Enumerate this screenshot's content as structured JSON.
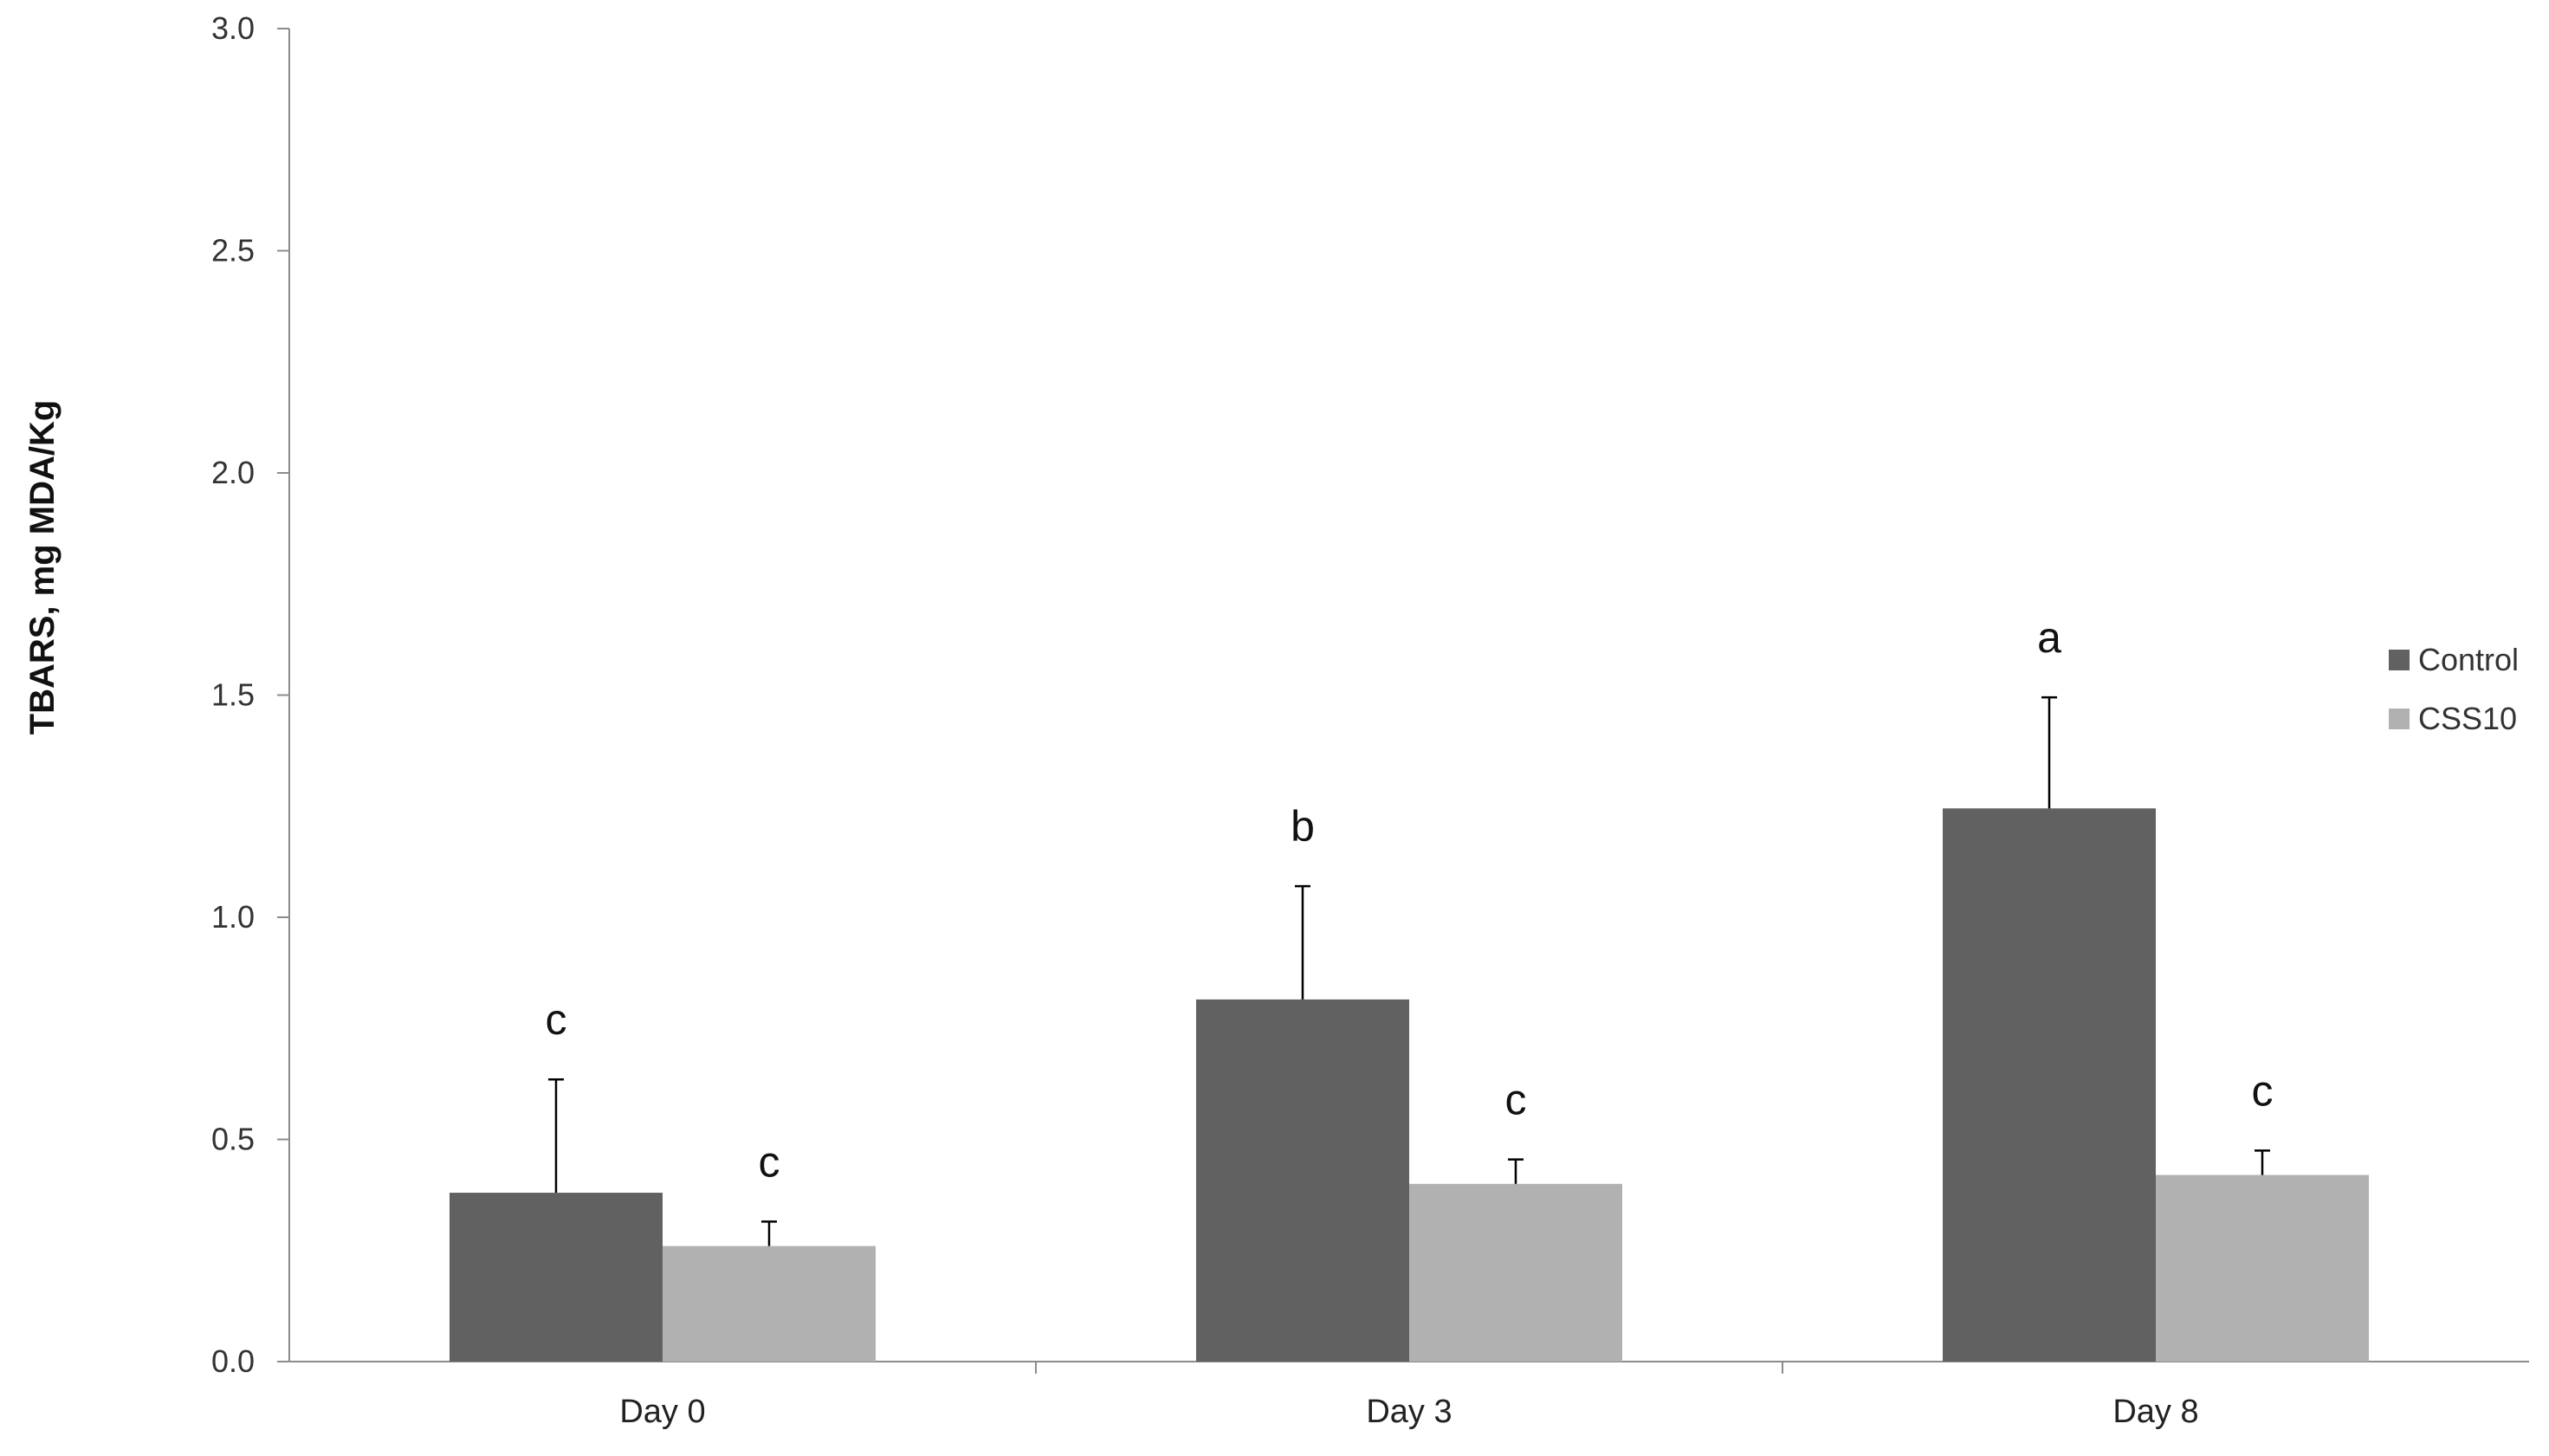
{
  "chart_data": {
    "type": "bar",
    "title": "",
    "xlabel": "",
    "ylabel": "TBARS, mg MDA/Kg",
    "ylim": [
      0,
      3.0
    ],
    "yticks": [
      "0.0",
      "0.5",
      "1.0",
      "1.5",
      "2.0",
      "2.5",
      "3.0"
    ],
    "ytick_values": [
      0,
      0.5,
      1.0,
      1.5,
      2.0,
      2.5,
      3.0
    ],
    "grid": false,
    "legend_position": "right",
    "categories": [
      "Day 0",
      "Day 3",
      "Day 8"
    ],
    "series": [
      {
        "name": "Control",
        "color": "#616161",
        "values": [
          0.38,
          0.815,
          1.245
        ],
        "errors": [
          0.255,
          0.255,
          0.25
        ],
        "significance": [
          "c",
          "b",
          "a"
        ]
      },
      {
        "name": "CSS10",
        "color": "#b1b1b1",
        "values": [
          0.26,
          0.4,
          0.42
        ],
        "errors": [
          0.055,
          0.055,
          0.055
        ],
        "significance": [
          "c",
          "c",
          "c"
        ]
      }
    ]
  }
}
